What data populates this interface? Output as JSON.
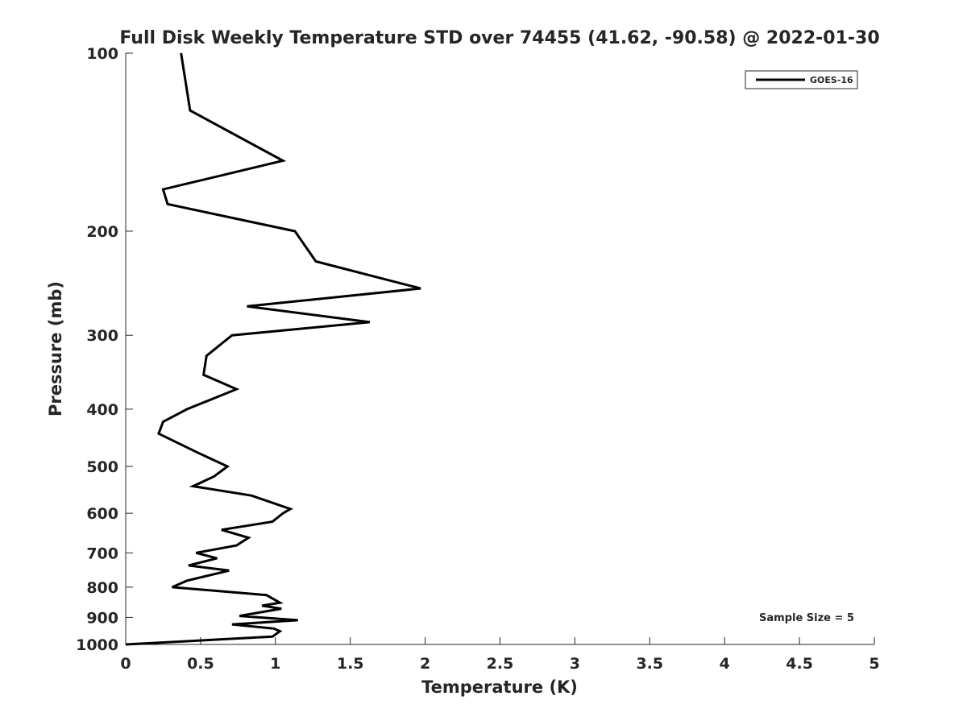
{
  "chart_data": {
    "type": "line",
    "title": "Full Disk Weekly Temperature STD over 74455 (41.62, -90.58) @ 2022-01-30",
    "xlabel": "Temperature (K)",
    "ylabel": "Pressure (mb)",
    "xlim": [
      0,
      5
    ],
    "ylim": [
      100,
      1000
    ],
    "y_scale": "log",
    "y_reversed": true,
    "x_ticks": [
      0,
      0.5,
      1,
      1.5,
      2,
      2.5,
      3,
      3.5,
      4,
      4.5,
      5
    ],
    "x_tick_labels": [
      "0",
      "0.5",
      "1",
      "1.5",
      "2",
      "2.5",
      "3",
      "3.5",
      "4",
      "4.5",
      "5"
    ],
    "y_ticks": [
      100,
      200,
      300,
      400,
      500,
      600,
      700,
      800,
      900,
      1000
    ],
    "y_tick_labels": [
      "100",
      "200",
      "300",
      "400",
      "500",
      "600",
      "700",
      "800",
      "900",
      "1000"
    ],
    "grid": false,
    "legend": {
      "position": "top-right",
      "entries": [
        "GOES-16"
      ]
    },
    "annotation": "Sample Size = 5",
    "series": [
      {
        "name": "GOES-16",
        "color": "#000000",
        "points": [
          [
            0.37,
            100
          ],
          [
            0.43,
            125
          ],
          [
            1.05,
            152
          ],
          [
            0.25,
            170
          ],
          [
            0.28,
            180
          ],
          [
            1.13,
            200
          ],
          [
            1.27,
            225
          ],
          [
            1.97,
            250
          ],
          [
            0.81,
            268
          ],
          [
            1.63,
            285
          ],
          [
            0.71,
            300
          ],
          [
            0.54,
            325
          ],
          [
            0.52,
            350
          ],
          [
            0.74,
            370
          ],
          [
            0.41,
            400
          ],
          [
            0.25,
            420
          ],
          [
            0.22,
            440
          ],
          [
            0.49,
            475
          ],
          [
            0.68,
            500
          ],
          [
            0.59,
            520
          ],
          [
            0.45,
            540
          ],
          [
            0.84,
            560
          ],
          [
            1.1,
            590
          ],
          [
            1.05,
            600
          ],
          [
            0.98,
            620
          ],
          [
            0.64,
            640
          ],
          [
            0.82,
            660
          ],
          [
            0.74,
            680
          ],
          [
            0.47,
            700
          ],
          [
            0.61,
            715
          ],
          [
            0.42,
            735
          ],
          [
            0.69,
            750
          ],
          [
            0.41,
            780
          ],
          [
            0.31,
            800
          ],
          [
            0.94,
            825
          ],
          [
            1.03,
            850
          ],
          [
            0.91,
            860
          ],
          [
            1.04,
            870
          ],
          [
            0.76,
            895
          ],
          [
            1.15,
            910
          ],
          [
            0.71,
            925
          ],
          [
            0.99,
            940
          ],
          [
            1.03,
            950
          ],
          [
            0.98,
            970
          ],
          [
            0.0,
            1000
          ]
        ]
      }
    ]
  }
}
